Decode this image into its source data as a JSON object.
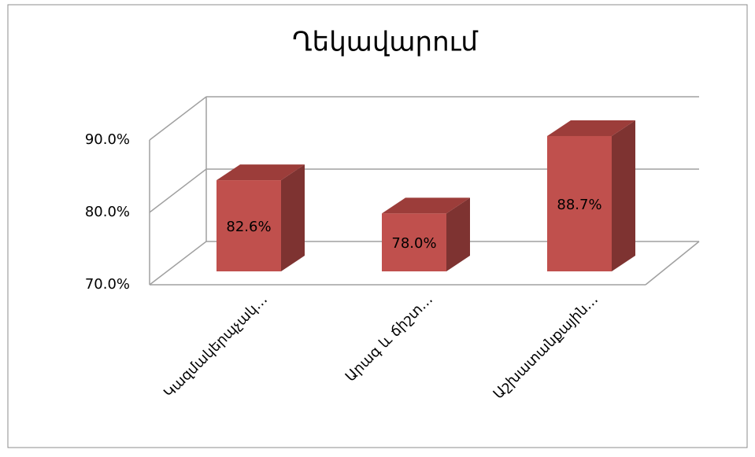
{
  "chart_data": {
    "type": "bar3d",
    "title": "Ղեկավարում",
    "categories": [
      "Կազմակերպչակ…",
      "Արագ և ճիշտ…",
      "Աշխատանքային…"
    ],
    "values": [
      82.6,
      78.0,
      88.7
    ],
    "value_labels": [
      "82.6%",
      "78.0%",
      "88.7%"
    ],
    "color": "#c0504d",
    "ylim": [
      70,
      90
    ],
    "yticks": [
      {
        "value": 70,
        "label": "70.0%"
      },
      {
        "value": 80,
        "label": "80.0%"
      },
      {
        "value": 90,
        "label": "90.0%"
      }
    ],
    "grid": true
  }
}
